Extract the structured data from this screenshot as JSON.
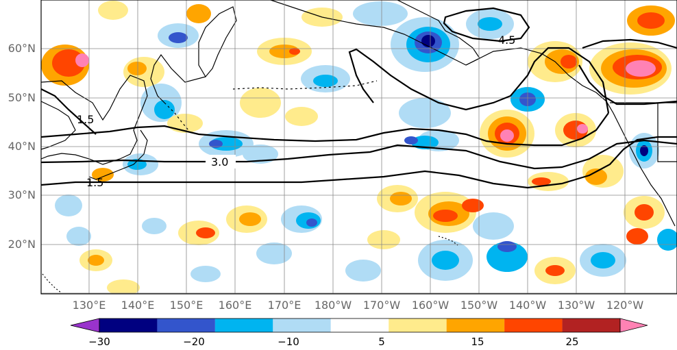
{
  "lat_labels": [
    "60°N",
    "50°N",
    "40°N",
    "30°N",
    "20°N"
  ],
  "lon_labels": [
    "130°E",
    "140°E",
    "150°E",
    "160°E",
    "170°E",
    "180°W",
    "170°W",
    "160°W",
    "150°W",
    "140°W",
    "130°W",
    "120°W"
  ],
  "contour_labels": [
    "3.0",
    "1.5",
    "4.5",
    "1.5"
  ],
  "colorbar": {
    "tick_labels": [
      "−30",
      "−20",
      "−10",
      "5",
      "15",
      "25"
    ],
    "colors": [
      "#9933cc",
      "#000080",
      "#3355cc",
      "#00b4f0",
      "#b0dcf5",
      "#ffffff",
      "#ffeb8c",
      "#ffa500",
      "#ff4500",
      "#b22222",
      "#ff82b4"
    ]
  },
  "anomaly_palette": {
    "neg_light": "#b0dcf5",
    "neg_mid": "#00b4f0",
    "neg_strong": "#3355cc",
    "neg_max": "#000080",
    "pos_light": "#ffeb8c",
    "pos_mid": "#ffa500",
    "pos_strong": "#ff4500",
    "pos_darker": "#b22222",
    "pos_max": "#ff82b4"
  }
}
